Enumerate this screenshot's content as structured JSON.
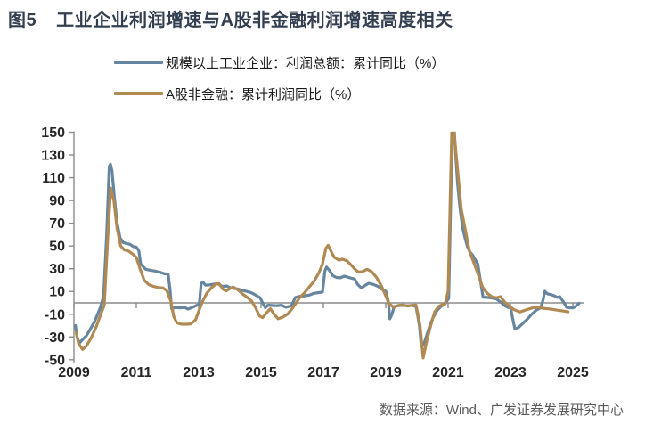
{
  "figure": {
    "label": "图5",
    "title": "工业企业利润增速与A股非金融利润增速高度相关"
  },
  "legend": [
    {
      "label": "规模以上工业企业：利润总额：累计同比（%）",
      "color": "#66859F"
    },
    {
      "label": "A股非金融：累计利润同比（%）",
      "color": "#B08A52"
    }
  ],
  "source": "数据来源：Wind、广发证券发展研究中心",
  "chart_data": {
    "type": "line",
    "title": "工业企业利润增速与A股非金融利润增速高度相关",
    "xlabel": "",
    "ylabel": "",
    "x_ticks": [
      2009,
      2011,
      2013,
      2015,
      2017,
      2019,
      2021,
      2023,
      2025
    ],
    "y_ticks": [
      150,
      130,
      110,
      90,
      70,
      50,
      30,
      10,
      -10,
      -30,
      -50
    ],
    "ylim": [
      -50,
      150
    ],
    "xlim": [
      2009,
      2025.4
    ],
    "grid": false,
    "zero_line": true,
    "axis_color": "#8C8C8C",
    "clip_above": 150,
    "legend_position": "top-left",
    "series": [
      {
        "name": "规模以上工业企业：利润总额：累计同比（%）",
        "color": "#66859F",
        "points": [
          [
            2009.05,
            -20
          ],
          [
            2009.1,
            -30
          ],
          [
            2009.17,
            -35.5
          ],
          [
            2009.25,
            -33
          ],
          [
            2009.4,
            -29
          ],
          [
            2009.55,
            -22
          ],
          [
            2009.65,
            -17
          ],
          [
            2009.75,
            -10.5
          ],
          [
            2009.85,
            -4
          ],
          [
            2009.95,
            6
          ],
          [
            2010.05,
            60
          ],
          [
            2010.13,
            119.7
          ],
          [
            2010.17,
            122
          ],
          [
            2010.22,
            116
          ],
          [
            2010.3,
            92
          ],
          [
            2010.38,
            71
          ],
          [
            2010.48,
            57
          ],
          [
            2010.58,
            53
          ],
          [
            2010.7,
            52
          ],
          [
            2010.8,
            51.5
          ],
          [
            2010.9,
            49.5
          ],
          [
            2011.0,
            49
          ],
          [
            2011.08,
            46
          ],
          [
            2011.14,
            34.3
          ],
          [
            2011.3,
            29.5
          ],
          [
            2011.45,
            28.7
          ],
          [
            2011.6,
            28
          ],
          [
            2011.75,
            27
          ],
          [
            2011.9,
            25.5
          ],
          [
            2012.02,
            25.4
          ],
          [
            2012.08,
            12
          ],
          [
            2012.13,
            -5.2
          ],
          [
            2012.25,
            -4
          ],
          [
            2012.4,
            -4.5
          ],
          [
            2012.55,
            -4
          ],
          [
            2012.65,
            -5.5
          ],
          [
            2012.8,
            -4
          ],
          [
            2012.95,
            -2
          ],
          [
            2013.02,
            -1
          ],
          [
            2013.08,
            17.2
          ],
          [
            2013.14,
            18
          ],
          [
            2013.22,
            15.5
          ],
          [
            2013.35,
            15.8
          ],
          [
            2013.5,
            16.5
          ],
          [
            2013.62,
            16.8
          ],
          [
            2013.75,
            14.5
          ],
          [
            2013.9,
            14.8
          ],
          [
            2014.0,
            13.5
          ],
          [
            2014.1,
            12.8
          ],
          [
            2014.25,
            12.2
          ],
          [
            2014.4,
            11
          ],
          [
            2014.55,
            10
          ],
          [
            2014.7,
            8.8
          ],
          [
            2014.85,
            6.5
          ],
          [
            2014.97,
            4.5
          ],
          [
            2015.07,
            -1
          ],
          [
            2015.14,
            -4.2
          ],
          [
            2015.22,
            -2
          ],
          [
            2015.35,
            -2.3
          ],
          [
            2015.5,
            -2.5
          ],
          [
            2015.65,
            -2
          ],
          [
            2015.8,
            -3.8
          ],
          [
            2015.92,
            -3
          ],
          [
            2015.98,
            -2.3
          ],
          [
            2016.1,
            4.8
          ],
          [
            2016.25,
            5.8
          ],
          [
            2016.4,
            6.2
          ],
          [
            2016.55,
            6.8
          ],
          [
            2016.7,
            8.4
          ],
          [
            2016.85,
            9
          ],
          [
            2016.97,
            9.5
          ],
          [
            2017.05,
            28
          ],
          [
            2017.1,
            31.5
          ],
          [
            2017.18,
            29
          ],
          [
            2017.3,
            24
          ],
          [
            2017.42,
            22.3
          ],
          [
            2017.55,
            22
          ],
          [
            2017.67,
            23.5
          ],
          [
            2017.8,
            22.5
          ],
          [
            2017.92,
            21.5
          ],
          [
            2018.0,
            21
          ],
          [
            2018.1,
            16.1
          ],
          [
            2018.22,
            13
          ],
          [
            2018.35,
            15.5
          ],
          [
            2018.45,
            17.2
          ],
          [
            2018.6,
            16.2
          ],
          [
            2018.75,
            14.5
          ],
          [
            2018.9,
            11.5
          ],
          [
            2019.0,
            10.3
          ],
          [
            2019.08,
            2
          ],
          [
            2019.13,
            -14
          ],
          [
            2019.2,
            -10
          ],
          [
            2019.27,
            -3.3
          ],
          [
            2019.4,
            -2.4
          ],
          [
            2019.55,
            -2.2
          ],
          [
            2019.7,
            -2.5
          ],
          [
            2019.85,
            -2.2
          ],
          [
            2019.97,
            -3.3
          ],
          [
            2020.08,
            -20
          ],
          [
            2020.14,
            -38.3
          ],
          [
            2020.22,
            -36.5
          ],
          [
            2020.32,
            -28
          ],
          [
            2020.42,
            -19.5
          ],
          [
            2020.52,
            -12.8
          ],
          [
            2020.65,
            -6.5
          ],
          [
            2020.78,
            -3
          ],
          [
            2020.9,
            -1
          ],
          [
            2021.02,
            4.1
          ],
          [
            2021.15,
            178.9
          ],
          [
            2021.22,
            140
          ],
          [
            2021.3,
            106
          ],
          [
            2021.38,
            83.4
          ],
          [
            2021.46,
            66.9
          ],
          [
            2021.54,
            57.3
          ],
          [
            2021.62,
            49.5
          ],
          [
            2021.7,
            44.7
          ],
          [
            2021.78,
            42.2
          ],
          [
            2021.87,
            38
          ],
          [
            2021.95,
            34.3
          ],
          [
            2022.12,
            5.0
          ],
          [
            2022.25,
            4.8
          ],
          [
            2022.4,
            4.3
          ],
          [
            2022.55,
            3.5
          ],
          [
            2022.7,
            0.5
          ],
          [
            2022.82,
            -2.5
          ],
          [
            2022.92,
            -4
          ],
          [
            2023.0,
            -3.9
          ],
          [
            2023.08,
            -15
          ],
          [
            2023.14,
            -22.9
          ],
          [
            2023.25,
            -21.8
          ],
          [
            2023.4,
            -18
          ],
          [
            2023.55,
            -14
          ],
          [
            2023.7,
            -9.5
          ],
          [
            2023.85,
            -6
          ],
          [
            2023.97,
            -4.5
          ],
          [
            2024.05,
            3
          ],
          [
            2024.1,
            10.2
          ],
          [
            2024.18,
            8
          ],
          [
            2024.3,
            7.3
          ],
          [
            2024.42,
            6
          ],
          [
            2024.5,
            4.8
          ],
          [
            2024.58,
            5.5
          ],
          [
            2024.7,
            0.8
          ],
          [
            2024.8,
            -3.8
          ],
          [
            2024.9,
            -4.3
          ],
          [
            2025.0,
            -4.5
          ],
          [
            2025.08,
            -3.3
          ],
          [
            2025.2,
            -0.3
          ]
        ]
      },
      {
        "name": "A股非金融：累计利润同比（%）",
        "color": "#B08A52",
        "points": [
          [
            2009.07,
            -26
          ],
          [
            2009.15,
            -36
          ],
          [
            2009.28,
            -41
          ],
          [
            2009.4,
            -38
          ],
          [
            2009.55,
            -31
          ],
          [
            2009.7,
            -22
          ],
          [
            2009.85,
            -11
          ],
          [
            2009.97,
            -2
          ],
          [
            2010.08,
            55
          ],
          [
            2010.18,
            101
          ],
          [
            2010.28,
            90
          ],
          [
            2010.38,
            66
          ],
          [
            2010.5,
            50
          ],
          [
            2010.62,
            46.5
          ],
          [
            2010.75,
            45.5
          ],
          [
            2010.88,
            43
          ],
          [
            2011.0,
            40
          ],
          [
            2011.12,
            30
          ],
          [
            2011.25,
            20
          ],
          [
            2011.4,
            16
          ],
          [
            2011.55,
            14.5
          ],
          [
            2011.7,
            13.5
          ],
          [
            2011.85,
            13.2
          ],
          [
            2011.97,
            11
          ],
          [
            2012.1,
            2
          ],
          [
            2012.2,
            -12
          ],
          [
            2012.3,
            -17.5
          ],
          [
            2012.45,
            -18.8
          ],
          [
            2012.6,
            -18.8
          ],
          [
            2012.75,
            -18.5
          ],
          [
            2012.9,
            -15
          ],
          [
            2013.02,
            -6
          ],
          [
            2013.12,
            1
          ],
          [
            2013.25,
            8
          ],
          [
            2013.4,
            13
          ],
          [
            2013.55,
            16.5
          ],
          [
            2013.65,
            17
          ],
          [
            2013.78,
            12
          ],
          [
            2013.88,
            10.5
          ],
          [
            2014.0,
            12.5
          ],
          [
            2014.1,
            14
          ],
          [
            2014.25,
            11.5
          ],
          [
            2014.4,
            8
          ],
          [
            2014.55,
            5
          ],
          [
            2014.7,
            1.5
          ],
          [
            2014.82,
            -4
          ],
          [
            2014.95,
            -11.5
          ],
          [
            2015.05,
            -13
          ],
          [
            2015.2,
            -8
          ],
          [
            2015.3,
            -5.2
          ],
          [
            2015.42,
            -10
          ],
          [
            2015.55,
            -14
          ],
          [
            2015.7,
            -12.5
          ],
          [
            2015.85,
            -10
          ],
          [
            2015.97,
            -6
          ],
          [
            2016.1,
            -1
          ],
          [
            2016.25,
            5
          ],
          [
            2016.4,
            9
          ],
          [
            2016.55,
            14
          ],
          [
            2016.7,
            19
          ],
          [
            2016.85,
            26
          ],
          [
            2016.97,
            34
          ],
          [
            2017.08,
            48
          ],
          [
            2017.15,
            50.5
          ],
          [
            2017.25,
            45
          ],
          [
            2017.35,
            40
          ],
          [
            2017.5,
            37.5
          ],
          [
            2017.6,
            38.5
          ],
          [
            2017.75,
            37
          ],
          [
            2017.9,
            33
          ],
          [
            2018.0,
            30
          ],
          [
            2018.12,
            27
          ],
          [
            2018.25,
            27.5
          ],
          [
            2018.4,
            29.5
          ],
          [
            2018.55,
            27.5
          ],
          [
            2018.7,
            22.5
          ],
          [
            2018.85,
            15.5
          ],
          [
            2018.97,
            8
          ],
          [
            2019.1,
            -0.5
          ],
          [
            2019.25,
            -4
          ],
          [
            2019.4,
            -2.2
          ],
          [
            2019.55,
            -1.8
          ],
          [
            2019.7,
            -2.8
          ],
          [
            2019.85,
            -2.2
          ],
          [
            2019.97,
            -1.8
          ],
          [
            2020.1,
            -20
          ],
          [
            2020.2,
            -48.5
          ],
          [
            2020.32,
            -33
          ],
          [
            2020.45,
            -19
          ],
          [
            2020.57,
            -8
          ],
          [
            2020.7,
            -3
          ],
          [
            2020.82,
            -1.5
          ],
          [
            2020.9,
            -1
          ],
          [
            2021.0,
            10
          ],
          [
            2021.13,
            168
          ],
          [
            2021.42,
            83
          ],
          [
            2021.68,
            46
          ],
          [
            2021.95,
            26
          ],
          [
            2022.1,
            14
          ],
          [
            2022.25,
            8.5
          ],
          [
            2022.4,
            5.5
          ],
          [
            2022.55,
            4.5
          ],
          [
            2022.68,
            5.5
          ],
          [
            2022.82,
            0.5
          ],
          [
            2022.95,
            -2.5
          ],
          [
            2023.1,
            -5.8
          ],
          [
            2023.3,
            -8
          ],
          [
            2023.5,
            -6.2
          ],
          [
            2023.7,
            -4.5
          ],
          [
            2023.88,
            -4
          ],
          [
            2024.05,
            -4.8
          ],
          [
            2024.25,
            -5.3
          ],
          [
            2024.45,
            -6.2
          ],
          [
            2024.65,
            -7
          ],
          [
            2024.85,
            -7.8
          ]
        ]
      }
    ]
  }
}
